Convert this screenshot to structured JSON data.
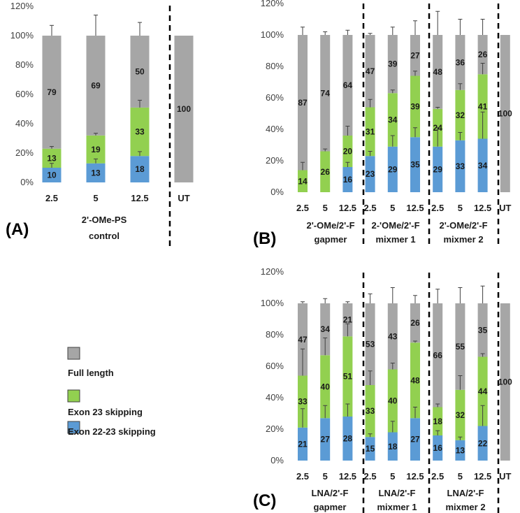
{
  "colors": {
    "full_length": "#a6a6a6",
    "exon23": "#92d050",
    "exon2223": "#5b9bd5",
    "axis_text": "#404040",
    "label_text": "#1a1a1a",
    "divider": "#000000",
    "error_bar": "#404040"
  },
  "legend": {
    "items": [
      {
        "key": "full",
        "label": "Full length"
      },
      {
        "key": "ex23",
        "label": "Exon 23 skipping"
      },
      {
        "key": "ex2223",
        "label": "Exon 22-23 skipping"
      }
    ]
  },
  "chart_data": [
    {
      "panel": "(A)",
      "type": "bar",
      "stacked": true,
      "ylim": [
        0,
        120
      ],
      "yticks": [
        0,
        20,
        40,
        60,
        80,
        100,
        120
      ],
      "ytick_suffix": "%",
      "bars": [
        {
          "x": "2.5",
          "blue": 10,
          "green": 13,
          "gray": 79,
          "err_blue": 3,
          "err_green": 1.5,
          "err_top": 7
        },
        {
          "x": "5",
          "blue": 13,
          "green": 19,
          "gray": 69,
          "err_blue": 3,
          "err_green": 1.5,
          "err_top": 14
        },
        {
          "x": "12.5",
          "blue": 18,
          "green": 33,
          "gray": 50,
          "err_blue": 3,
          "err_green": 5,
          "err_top": 9
        },
        {
          "x": "UT",
          "blue": 0,
          "green": 0,
          "gray": 100,
          "err_blue": 0,
          "err_green": 0,
          "err_top": 0
        }
      ],
      "group_labels": [
        [
          "2'-OMe-PS",
          "control"
        ]
      ],
      "divider_before": [
        3
      ]
    },
    {
      "panel": "(B)",
      "type": "bar",
      "stacked": true,
      "ylim": [
        0,
        120
      ],
      "yticks": [
        0,
        20,
        40,
        60,
        80,
        100,
        120
      ],
      "ytick_suffix": "%",
      "bars": [
        {
          "x": "2.5",
          "blue": 0,
          "green": 14,
          "gray": 87,
          "err_blue": 0,
          "err_green": 5,
          "err_top": 5
        },
        {
          "x": "5",
          "blue": 0,
          "green": 26,
          "gray": 74,
          "err_blue": 0,
          "err_green": 1.5,
          "err_top": 2
        },
        {
          "x": "12.5",
          "blue": 16,
          "green": 20,
          "gray": 64,
          "err_blue": 3,
          "err_green": 6,
          "err_top": 3
        },
        {
          "x": "2.5",
          "blue": 23,
          "green": 31,
          "gray": 47,
          "err_blue": 3,
          "err_green": 5,
          "err_top": 1
        },
        {
          "x": "5",
          "blue": 29,
          "green": 34,
          "gray": 39,
          "err_blue": 7,
          "err_green": 2,
          "err_top": 5
        },
        {
          "x": "12.5",
          "blue": 35,
          "green": 39,
          "gray": 27,
          "err_blue": 6,
          "err_green": 3,
          "err_top": 9
        },
        {
          "x": "2.5",
          "blue": 29,
          "green": 24,
          "gray": 48,
          "err_blue": 12,
          "err_green": 1,
          "err_top": 15
        },
        {
          "x": "5",
          "blue": 33,
          "green": 32,
          "gray": 36,
          "err_blue": 5,
          "err_green": 4,
          "err_top": 10
        },
        {
          "x": "12.5",
          "blue": 34,
          "green": 41,
          "gray": 26,
          "err_blue": 17,
          "err_green": 7,
          "err_top": 10
        },
        {
          "x": "UT",
          "blue": 0,
          "green": 0,
          "gray": 100,
          "err_blue": 0,
          "err_green": 0,
          "err_top": 0
        }
      ],
      "group_labels": [
        [
          "2'-OMe/2'-F",
          "gapmer"
        ],
        [
          "2-'OMe/2'-F",
          "mixmer 1"
        ],
        [
          "2'-OMe/2'-F",
          "mixmer 2"
        ]
      ],
      "divider_before": [
        3,
        6,
        9
      ]
    },
    {
      "panel": "(C)",
      "type": "bar",
      "stacked": true,
      "ylim": [
        0,
        120
      ],
      "yticks": [
        0,
        20,
        40,
        60,
        80,
        100,
        120
      ],
      "ytick_suffix": "%",
      "bars": [
        {
          "x": "2.5",
          "blue": 21,
          "green": 33,
          "gray": 47,
          "err_blue": 12,
          "err_green": 17,
          "err_top": 1
        },
        {
          "x": "5",
          "blue": 27,
          "green": 40,
          "gray": 34,
          "err_blue": 8,
          "err_green": 11,
          "err_top": 3
        },
        {
          "x": "12.5",
          "blue": 28,
          "green": 51,
          "gray": 21,
          "err_blue": 8,
          "err_green": 8,
          "err_top": 1
        },
        {
          "x": "2.5",
          "blue": 15,
          "green": 33,
          "gray": 53,
          "err_blue": 2,
          "err_green": 9,
          "err_top": 6
        },
        {
          "x": "5",
          "blue": 18,
          "green": 40,
          "gray": 43,
          "err_blue": 7,
          "err_green": 4,
          "err_top": 10
        },
        {
          "x": "12.5",
          "blue": 27,
          "green": 48,
          "gray": 26,
          "err_blue": 7,
          "err_green": 1,
          "err_top": 5
        },
        {
          "x": "2.5",
          "blue": 16,
          "green": 18,
          "gray": 66,
          "err_blue": 3,
          "err_green": 2,
          "err_top": 9
        },
        {
          "x": "5",
          "blue": 13,
          "green": 32,
          "gray": 55,
          "err_blue": 2,
          "err_green": 9,
          "err_top": 10
        },
        {
          "x": "12.5",
          "blue": 22,
          "green": 44,
          "gray": 35,
          "err_blue": 13,
          "err_green": 2,
          "err_top": 11
        },
        {
          "x": "UT",
          "blue": 0,
          "green": 0,
          "gray": 100,
          "err_blue": 0,
          "err_green": 0,
          "err_top": 0
        }
      ],
      "group_labels": [
        [
          "LNA/2'-F",
          "gapmer"
        ],
        [
          "LNA/2'-F",
          "mixmer 1"
        ],
        [
          "LNA/2'-F",
          "mixmer 2"
        ]
      ],
      "divider_before": [
        3,
        6,
        9
      ]
    }
  ]
}
